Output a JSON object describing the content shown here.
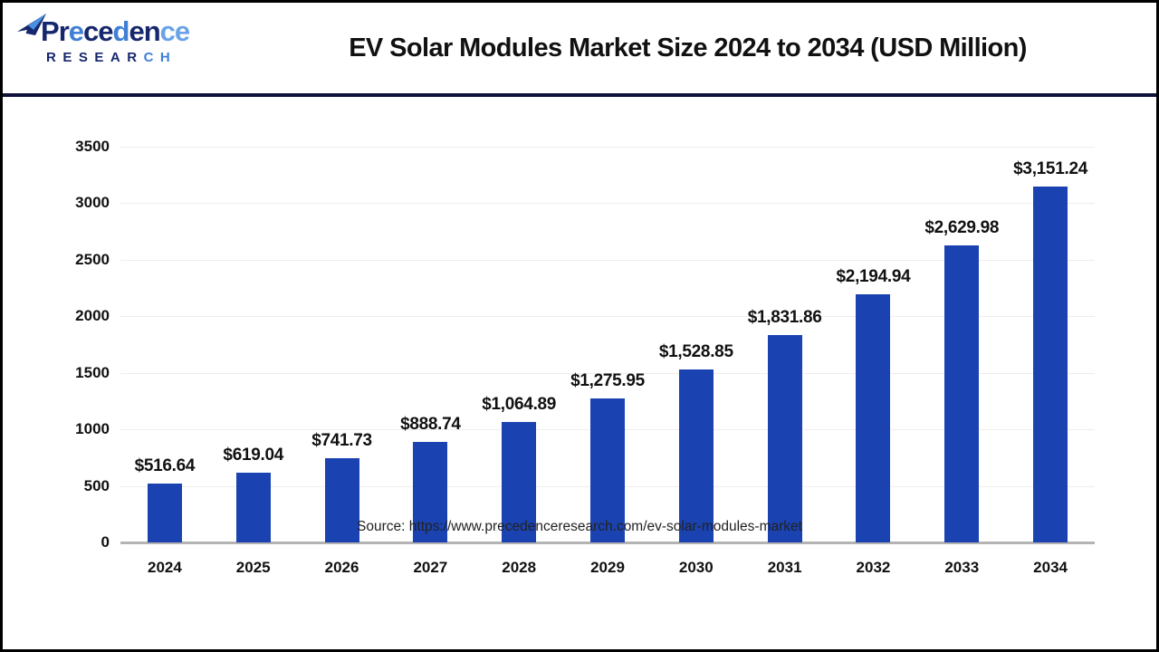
{
  "header": {
    "logo": {
      "brand_word": "Precedence",
      "brand_letters": [
        {
          "ch": "P",
          "color": "#16276e"
        },
        {
          "ch": "r",
          "color": "#16276e"
        },
        {
          "ch": "e",
          "color": "#3f7fd6"
        },
        {
          "ch": "c",
          "color": "#16276e"
        },
        {
          "ch": "e",
          "color": "#16276e"
        },
        {
          "ch": "d",
          "color": "#3f7fd6"
        },
        {
          "ch": "e",
          "color": "#16276e"
        },
        {
          "ch": "n",
          "color": "#16276e"
        },
        {
          "ch": "c",
          "color": "#6aa3e8"
        },
        {
          "ch": "e",
          "color": "#6aa3e8"
        }
      ],
      "research_word": "RESEARCH",
      "research_letters": [
        {
          "ch": "R",
          "color": "#16276e"
        },
        {
          "ch": "E",
          "color": "#16276e"
        },
        {
          "ch": "S",
          "color": "#16276e"
        },
        {
          "ch": "E",
          "color": "#16276e"
        },
        {
          "ch": "A",
          "color": "#16276e"
        },
        {
          "ch": "R",
          "color": "#16276e"
        },
        {
          "ch": "C",
          "color": "#3f7fd6"
        },
        {
          "ch": "H",
          "color": "#3f7fd6"
        }
      ],
      "icon_colors": {
        "dark": "#16276e",
        "light": "#4a90e2"
      }
    },
    "title": "EV Solar Modules Market Size 2024 to 2034 (USD Million)"
  },
  "chart_data": {
    "type": "bar",
    "title": "EV Solar Modules Market Size 2024 to 2034 (USD Million)",
    "categories": [
      "2024",
      "2025",
      "2026",
      "2027",
      "2028",
      "2029",
      "2030",
      "2031",
      "2032",
      "2033",
      "2034"
    ],
    "values": [
      516.64,
      619.04,
      741.73,
      888.74,
      1064.89,
      1275.95,
      1528.85,
      1831.86,
      2194.94,
      2629.98,
      3151.24
    ],
    "value_labels": [
      "$516.64",
      "$619.04",
      "$741.73",
      "$888.74",
      "$1,064.89",
      "$1,275.95",
      "$1,528.85",
      "$1,831.86",
      "$2,194.94",
      "$2,629.98",
      "$3,151.24"
    ],
    "xlabel": "",
    "ylabel": "",
    "ylim": [
      0,
      3500
    ],
    "ytick_step": 500,
    "yticks": [
      0,
      500,
      1000,
      1500,
      2000,
      2500,
      3000,
      3500
    ],
    "grid": true,
    "legend": false,
    "bar_color": "#1a42b0",
    "axis_color": "#b3b3b3",
    "gridline_color": "#f0edea",
    "label_color": "#111111"
  },
  "footer": {
    "source_text": "Source: https://www.precedenceresearch.com/ev-solar-modules-market"
  }
}
